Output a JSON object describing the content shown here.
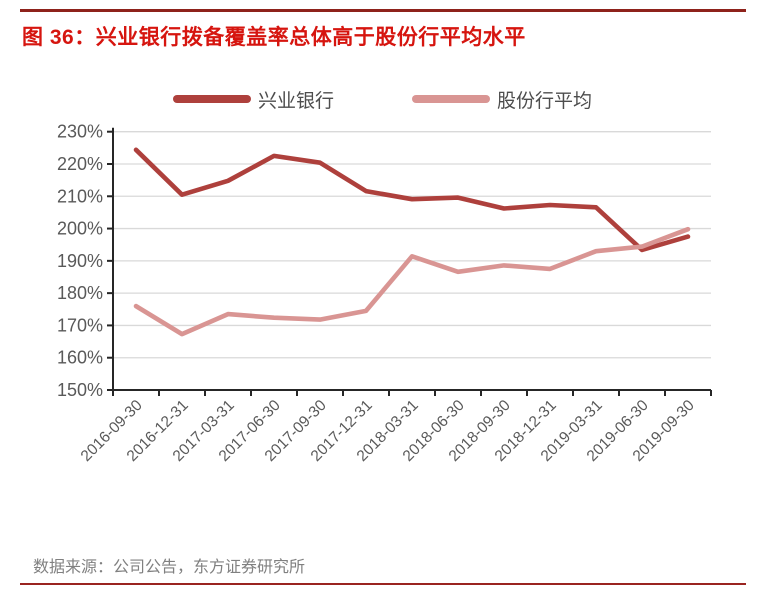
{
  "header": {
    "title": "图 36：兴业银行拨备覆盖率总体高于股份行平均水平"
  },
  "footer": {
    "source": "数据来源：公司公告，东方证券研究所"
  },
  "colors": {
    "title_red": "#D6150F",
    "rule_dark_red": "#8E221B",
    "series_dark_red": "#AE403C",
    "series_pink": "#D99593",
    "gridline_gray": "#D9D9D9",
    "axis_dark": "#262626",
    "axis_label_gray": "#595959",
    "legend_text_gray": "#4D4D4D",
    "source_gray": "#808080"
  },
  "chart_data": {
    "type": "line",
    "title": "图 36：兴业银行拨备覆盖率总体高于股份行平均水平",
    "categories": [
      "2016-09-30",
      "2016-12-31",
      "2017-03-31",
      "2017-06-30",
      "2017-09-30",
      "2017-12-31",
      "2018-03-31",
      "2018-06-30",
      "2018-09-30",
      "2018-12-31",
      "2019-03-31",
      "2019-06-30",
      "2019-09-30"
    ],
    "series": [
      {
        "name": "兴业银行",
        "color": "#AE403C",
        "values": [
          224.4,
          210.5,
          214.8,
          222.5,
          220.4,
          211.6,
          209.1,
          209.6,
          206.2,
          207.3,
          206.6,
          193.4,
          197.5
        ]
      },
      {
        "name": "股份行平均",
        "color": "#D99593",
        "values": [
          176.0,
          167.3,
          173.5,
          172.4,
          171.8,
          174.5,
          191.4,
          186.6,
          188.6,
          187.5,
          193.0,
          194.4,
          199.8
        ]
      }
    ],
    "ylim": [
      150,
      230
    ],
    "ytick_step": 10,
    "ytick_labels": [
      "150%",
      "160%",
      "170%",
      "180%",
      "190%",
      "200%",
      "210%",
      "220%",
      "230%"
    ],
    "xlabel": "",
    "ylabel": "",
    "grid": true,
    "legend_position": "top"
  }
}
